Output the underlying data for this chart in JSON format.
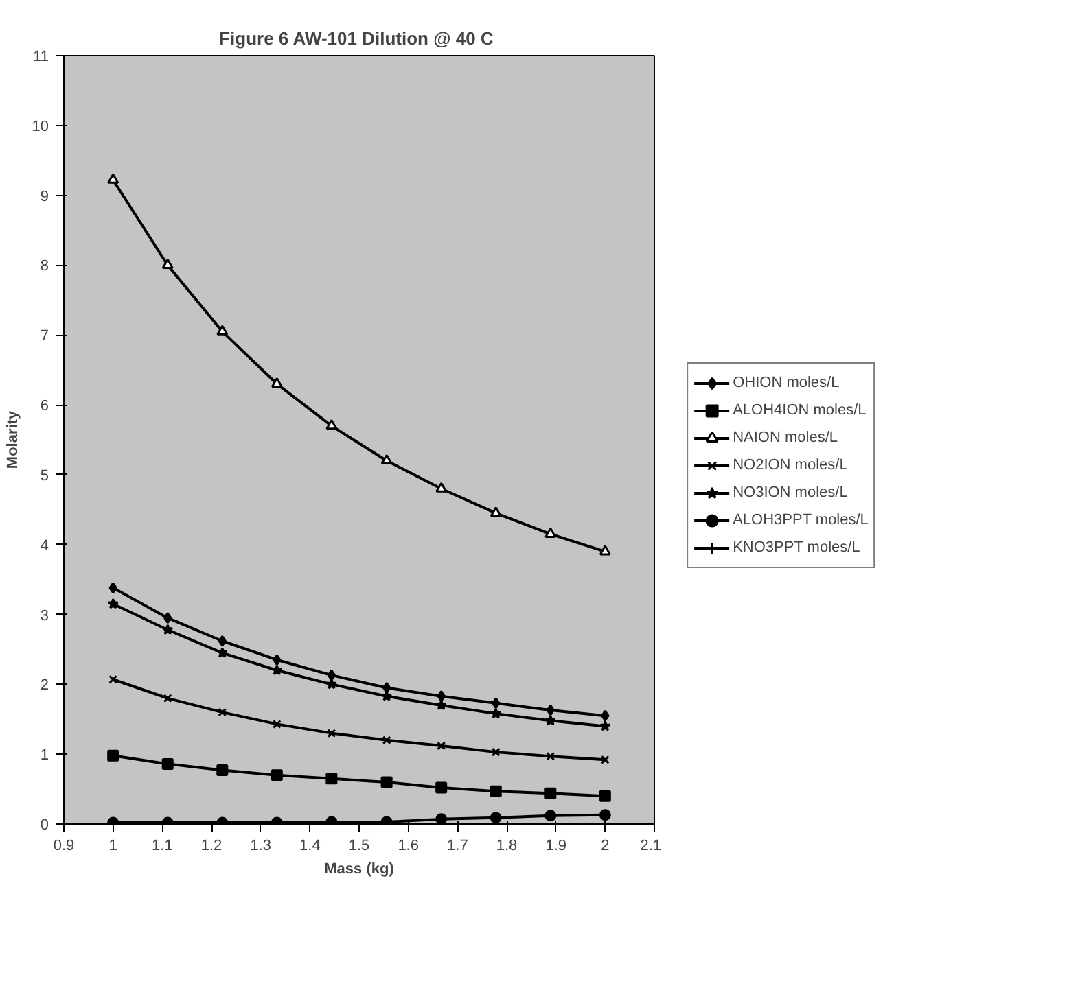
{
  "chart_data": {
    "type": "line",
    "title": "Figure 6  AW-101 Dilution @ 40 C",
    "xlabel": "Mass (kg)",
    "ylabel": "Molarity",
    "x": [
      1,
      1.111,
      1.222,
      1.333,
      1.444,
      1.556,
      1.667,
      1.778,
      1.889,
      2
    ],
    "xlim": [
      0.9,
      2.1
    ],
    "xticks": [
      0.9,
      1,
      1.1,
      1.2,
      1.3,
      1.4,
      1.5,
      1.6,
      1.7,
      1.8,
      1.9,
      2,
      2.1
    ],
    "ylim": [
      0,
      11
    ],
    "yticks": [
      0,
      1,
      2,
      3,
      4,
      5,
      6,
      7,
      8,
      9,
      10,
      11
    ],
    "grid": false,
    "legend": "right",
    "line_style": "solid",
    "series": [
      {
        "name": "OHION moles/L",
        "color": "#000000",
        "marker": "diamond",
        "values": [
          3.38,
          2.95,
          2.62,
          2.35,
          2.13,
          1.95,
          1.83,
          1.73,
          1.63,
          1.55
        ]
      },
      {
        "name": "ALOH4ION moles/L",
        "color": "#000000",
        "marker": "square",
        "values": [
          0.98,
          0.86,
          0.77,
          0.7,
          0.65,
          0.6,
          0.52,
          0.47,
          0.44,
          0.4
        ]
      },
      {
        "name": "NAION moles/L",
        "color": "#000000",
        "marker": "triangle",
        "values": [
          9.22,
          8.0,
          7.05,
          6.3,
          5.7,
          5.2,
          4.8,
          4.45,
          4.15,
          3.9
        ]
      },
      {
        "name": "NO2ION moles/L",
        "color": "#000000",
        "marker": "x",
        "values": [
          2.07,
          1.8,
          1.6,
          1.43,
          1.3,
          1.2,
          1.12,
          1.03,
          0.97,
          0.92
        ]
      },
      {
        "name": "NO3ION moles/L",
        "color": "#000000",
        "marker": "star",
        "values": [
          3.15,
          2.78,
          2.45,
          2.2,
          2.0,
          1.83,
          1.7,
          1.58,
          1.48,
          1.4
        ]
      },
      {
        "name": "ALOH3PPT moles/L",
        "color": "#000000",
        "marker": "circle",
        "values": [
          0.02,
          0.02,
          0.02,
          0.02,
          0.03,
          0.03,
          0.07,
          0.09,
          0.12,
          0.13
        ]
      },
      {
        "name": "KNO3PPT moles/L",
        "color": "#000000",
        "marker": "cross",
        "values": [
          null,
          null,
          null,
          null,
          null,
          null,
          null,
          null,
          null,
          null
        ]
      }
    ]
  }
}
